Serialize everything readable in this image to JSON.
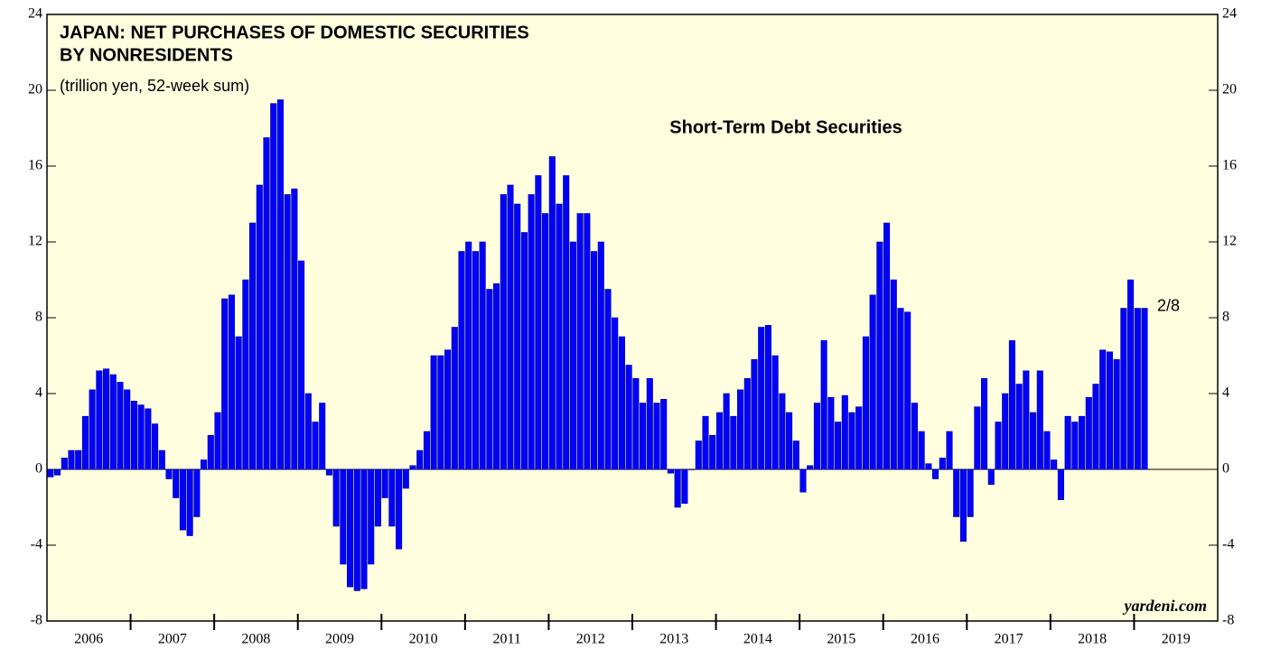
{
  "chart_data": {
    "type": "bar",
    "title": [
      "JAPAN: NET PURCHASES OF DOMESTIC SECURITIES",
      "BY NONRESIDENTS"
    ],
    "subtitle": "(trillion yen, 52-week sum)",
    "series_name": "Short-Term Debt Securities",
    "annotation": "2/8",
    "source": "yardeni.com",
    "color": "#0000ff",
    "background": "#ffffe0",
    "ylim": [
      -8,
      24
    ],
    "yticks": [
      -8,
      -4,
      0,
      4,
      8,
      12,
      16,
      20,
      24
    ],
    "years": [
      {
        "label": "2006",
        "values": [
          -0.4,
          -0.3,
          0.6,
          1.0,
          1.0,
          2.8,
          4.2,
          5.2,
          5.3,
          5.0,
          4.6,
          4.2
        ]
      },
      {
        "label": "2007",
        "values": [
          3.6,
          3.4,
          3.2,
          2.4,
          1.0,
          -0.5,
          -1.5,
          -3.2,
          -3.5,
          -2.5,
          0.5,
          1.8
        ]
      },
      {
        "label": "2008",
        "values": [
          3.0,
          9.0,
          9.2,
          7.0,
          10.0,
          13.0,
          15.0,
          17.5,
          19.3,
          19.5,
          14.5,
          14.8
        ]
      },
      {
        "label": "2009",
        "values": [
          11.0,
          4.0,
          2.5,
          3.5,
          -0.3,
          -3.0,
          -5.0,
          -6.2,
          -6.4,
          -6.3,
          -5.0,
          -3.0
        ]
      },
      {
        "label": "2010",
        "values": [
          -1.5,
          -3.0,
          -4.2,
          -1.0,
          0.2,
          1.0,
          2.0,
          6.0,
          6.0,
          6.3,
          7.5,
          11.5
        ]
      },
      {
        "label": "2011",
        "values": [
          12.0,
          11.5,
          12.0,
          9.5,
          9.8,
          14.5,
          15.0,
          14.0,
          12.5,
          14.5,
          15.5,
          13.5
        ]
      },
      {
        "label": "2012",
        "values": [
          16.5,
          14.0,
          15.5,
          12.0,
          13.5,
          13.5,
          11.5,
          12.0,
          9.5,
          8.0,
          7.0,
          5.5
        ]
      },
      {
        "label": "2013",
        "values": [
          4.8,
          3.5,
          4.8,
          3.5,
          3.7,
          -0.2,
          -2.0,
          -1.8,
          0.0,
          1.5,
          2.8,
          1.8
        ]
      },
      {
        "label": "2014",
        "values": [
          3.0,
          4.0,
          2.8,
          4.2,
          4.8,
          5.8,
          7.5,
          7.6,
          6.0,
          4.0,
          3.0,
          1.5
        ]
      },
      {
        "label": "2015",
        "values": [
          -1.2,
          0.2,
          3.5,
          6.8,
          3.8,
          2.5,
          3.9,
          3.0,
          3.3,
          7.0,
          9.2,
          12.0
        ]
      },
      {
        "label": "2016",
        "values": [
          13.0,
          10.0,
          8.5,
          8.3,
          3.5,
          2.0,
          0.3,
          -0.5,
          0.6,
          2.0,
          -2.5,
          -3.8
        ]
      },
      {
        "label": "2017",
        "values": [
          -2.5,
          3.3,
          4.8,
          -0.8,
          2.5,
          4.0,
          6.8,
          4.5,
          5.2,
          3.0,
          5.2,
          2.0
        ]
      },
      {
        "label": "2018",
        "values": [
          0.5,
          -1.6,
          2.8,
          2.5,
          2.8,
          3.8,
          4.5,
          6.3,
          6.2,
          5.8,
          8.5,
          10.0
        ]
      },
      {
        "label": "2019",
        "values": [
          8.5,
          8.5
        ]
      }
    ]
  }
}
